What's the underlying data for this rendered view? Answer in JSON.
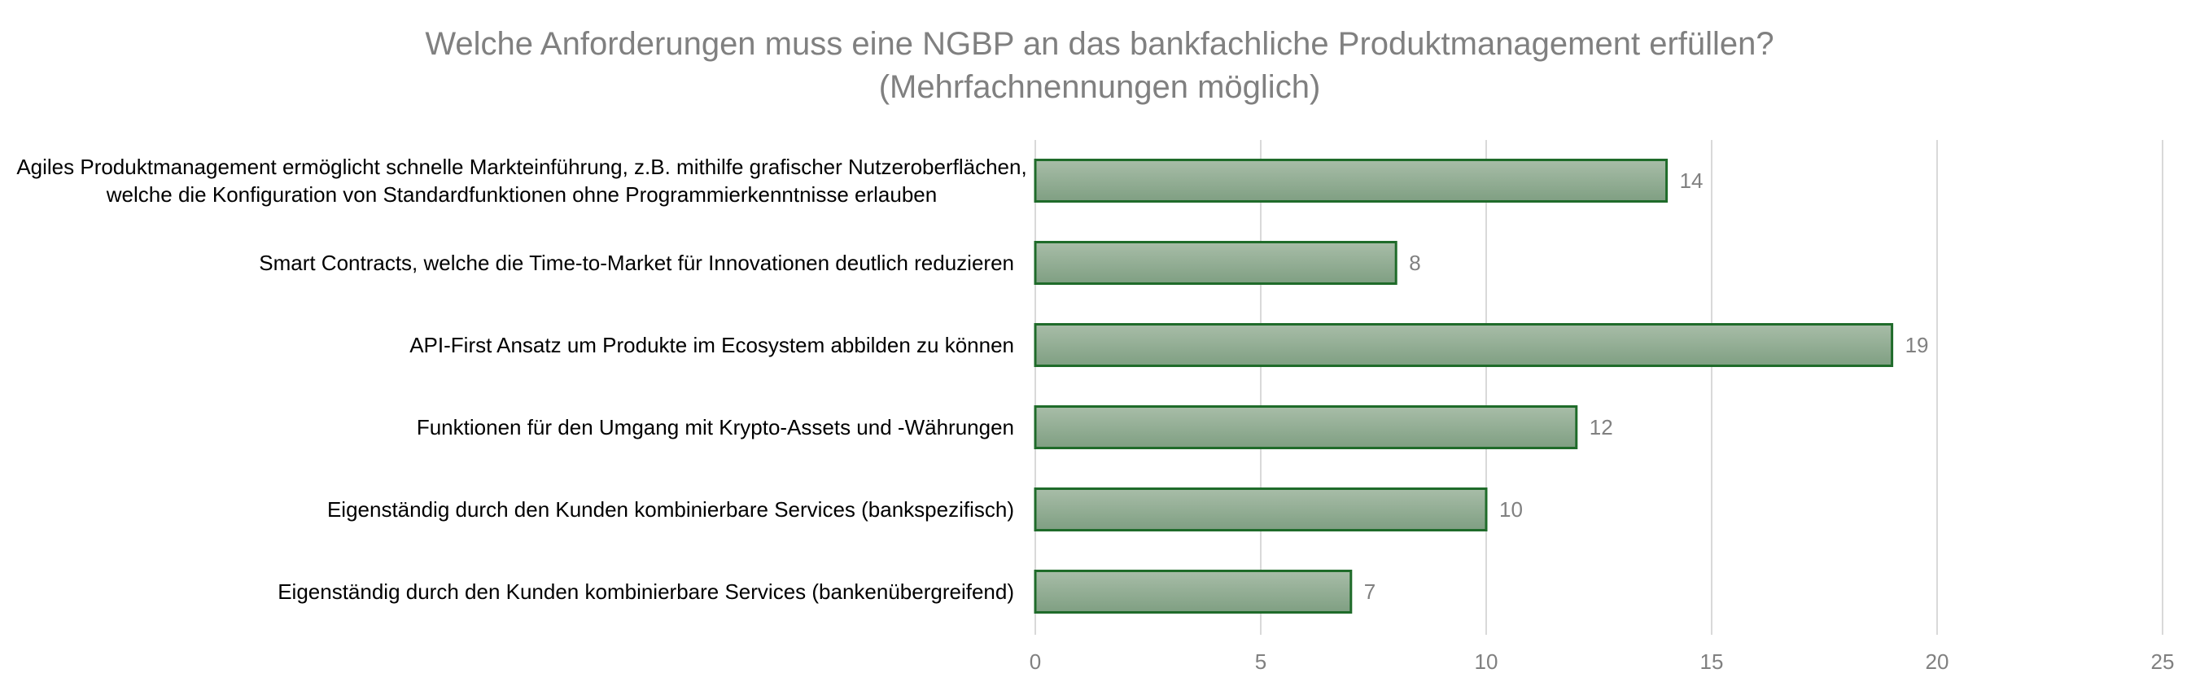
{
  "chart_data": {
    "type": "bar",
    "orientation": "horizontal",
    "title": "Welche Anforderungen muss eine NGBP an das bankfachliche Produktmanagement erfüllen?",
    "subtitle": "(Mehrfachnennungen möglich)",
    "categories": [
      [
        "Agiles Produktmanagement ermöglicht schnelle Markteinführung, z.B. mithilfe grafischer Nutzeroberflächen,",
        "welche die Konfiguration von Standardfunktionen ohne Programmierkenntnisse erlauben"
      ],
      [
        "Smart Contracts, welche die Time-to-Market für Innovationen deutlich reduzieren"
      ],
      [
        "API-First Ansatz um Produkte im Ecosystem abbilden zu können"
      ],
      [
        "Funktionen für den Umgang mit Krypto-Assets und -Währungen"
      ],
      [
        "Eigenständig durch den Kunden kombinierbare Services (bankspezifisch)"
      ],
      [
        "Eigenständig durch den Kunden kombinierbare Services (bankenübergreifend)"
      ]
    ],
    "values": [
      14,
      8,
      19,
      12,
      10,
      7
    ],
    "xlim": [
      0,
      25
    ],
    "xticks": [
      0,
      5,
      10,
      15,
      20,
      25
    ],
    "xlabel": "",
    "ylabel": "",
    "grid": "vertical",
    "legend": "none",
    "colors": {
      "bar_fill_top": "#a8bda8",
      "bar_fill_bottom": "#7f9f82",
      "bar_stroke": "#1f6b2a",
      "gridline": "#d9d9d9",
      "title": "#808080",
      "tick_label": "#808080",
      "data_label": "#808080",
      "category_label": "#000000"
    }
  }
}
